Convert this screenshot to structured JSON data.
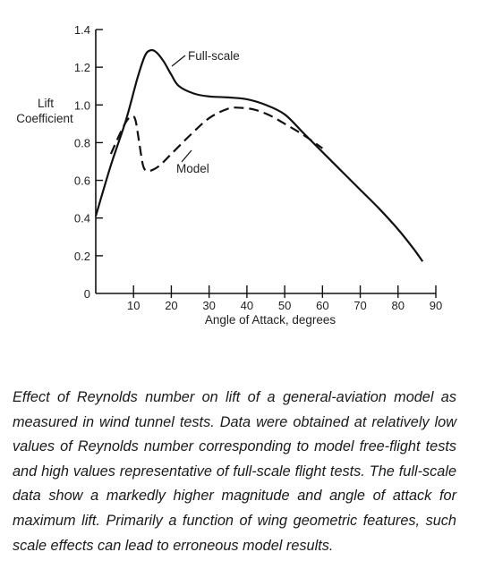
{
  "chart_data": {
    "type": "line",
    "xlabel": "Angle of Attack, degrees",
    "ylabel_line1": "Lift",
    "ylabel_line2": "Coefficient",
    "xlim": [
      0,
      90
    ],
    "ylim": [
      0,
      1.4
    ],
    "x_ticks": [
      10,
      20,
      30,
      40,
      50,
      60,
      70,
      80,
      90
    ],
    "x_tick_labels": [
      "10",
      "20",
      "30",
      "40",
      "50",
      "60",
      "70",
      "80",
      "90"
    ],
    "y_ticks": [
      0,
      0.2,
      0.4,
      0.6,
      0.8,
      1.0,
      1.2,
      1.4
    ],
    "y_tick_labels": [
      "0",
      "0.2",
      "0.4",
      "0.6",
      "0.8",
      "1.0",
      "1.2",
      "1.4"
    ],
    "grid": false,
    "series": [
      {
        "name": "Full-scale",
        "style": "solid",
        "color": "#111111",
        "x": [
          0,
          4,
          8,
          11,
          13,
          14.5,
          16,
          18,
          20,
          22,
          26,
          30,
          35,
          40,
          45,
          50,
          55,
          60,
          65,
          70,
          75,
          80,
          84,
          86.5
        ],
        "y": [
          0.41,
          0.68,
          0.92,
          1.14,
          1.26,
          1.29,
          1.28,
          1.23,
          1.16,
          1.1,
          1.06,
          1.045,
          1.04,
          1.03,
          1.0,
          0.95,
          0.85,
          0.75,
          0.65,
          0.55,
          0.45,
          0.34,
          0.24,
          0.17
        ]
      },
      {
        "name": "Model",
        "style": "dashed",
        "color": "#111111",
        "x": [
          4,
          6,
          8,
          9.5,
          10.5,
          11.5,
          12.5,
          13.5,
          15,
          17,
          20,
          25,
          30,
          35,
          38,
          42,
          46,
          50,
          55,
          60
        ],
        "y": [
          0.74,
          0.83,
          0.91,
          0.94,
          0.92,
          0.8,
          0.68,
          0.65,
          0.655,
          0.68,
          0.74,
          0.84,
          0.93,
          0.98,
          0.985,
          0.975,
          0.945,
          0.9,
          0.84,
          0.77
        ]
      }
    ],
    "annotations": [
      {
        "text": "Full-scale",
        "series": "Full-scale"
      },
      {
        "text": "Model",
        "series": "Model"
      }
    ]
  },
  "caption": "Effect of Reynolds number on lift of a general-aviation model as measured in wind tunnel tests. Data were obtained at relatively low values of Reynolds number corresponding to model free-flight tests and high values representative of full-scale flight tests. The full-scale data show a markedly higher magnitude and angle of attack for maximum lift. Primarily a function of wing geometric features, such scale effects can lead to erroneous model results."
}
